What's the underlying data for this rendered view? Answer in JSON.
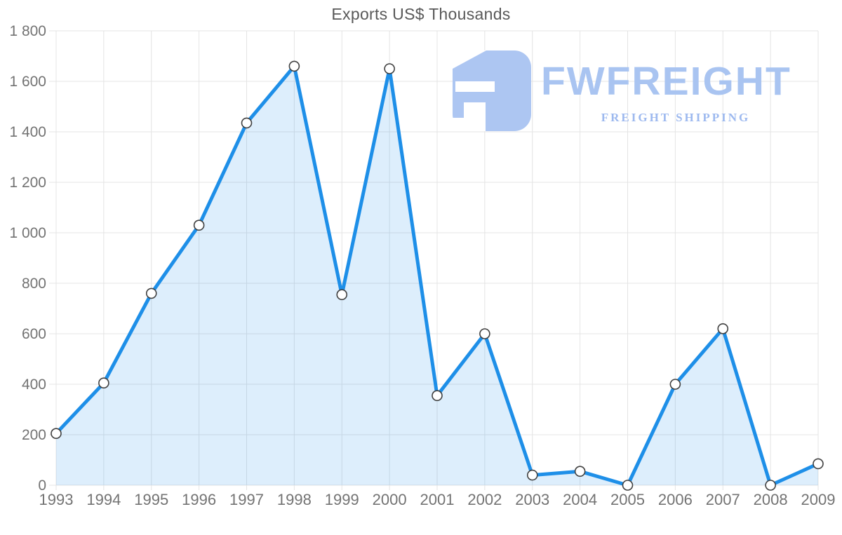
{
  "chart_data": {
    "type": "area",
    "title": "Exports US$ Thousands",
    "categories": [
      "1993",
      "1994",
      "1995",
      "1996",
      "1997",
      "1998",
      "1999",
      "2000",
      "2001",
      "2002",
      "2003",
      "2004",
      "2005",
      "2006",
      "2007",
      "2008",
      "2009"
    ],
    "series": [
      {
        "name": "Exports",
        "values": [
          205,
          405,
          760,
          1030,
          1435,
          1660,
          755,
          1650,
          355,
          600,
          40,
          55,
          0,
          400,
          620,
          0,
          85
        ]
      }
    ],
    "xlabel": "",
    "ylabel": "",
    "ylim": [
      0,
      1800
    ],
    "ytick_step": 200,
    "ytick_labels": [
      "0",
      "200",
      "400",
      "600",
      "800",
      "1 000",
      "1 200",
      "1 400",
      "1 600",
      "1 800"
    ],
    "grid": true,
    "legend": false,
    "colors": {
      "line": "#1e8fe8",
      "fill": "rgba(30,143,232,0.15)",
      "marker_fill": "#ffffff",
      "marker_stroke": "#404040",
      "grid": "#e4e4e4",
      "axis_text": "#737373",
      "title_text": "#595959"
    }
  },
  "logo": {
    "name": "FWFREIGHT",
    "tagline": "FREIGHT SHIPPING",
    "color": "#a9c4f1",
    "tagline_color": "#9db9ef",
    "mark_color": "#adc6f2"
  }
}
